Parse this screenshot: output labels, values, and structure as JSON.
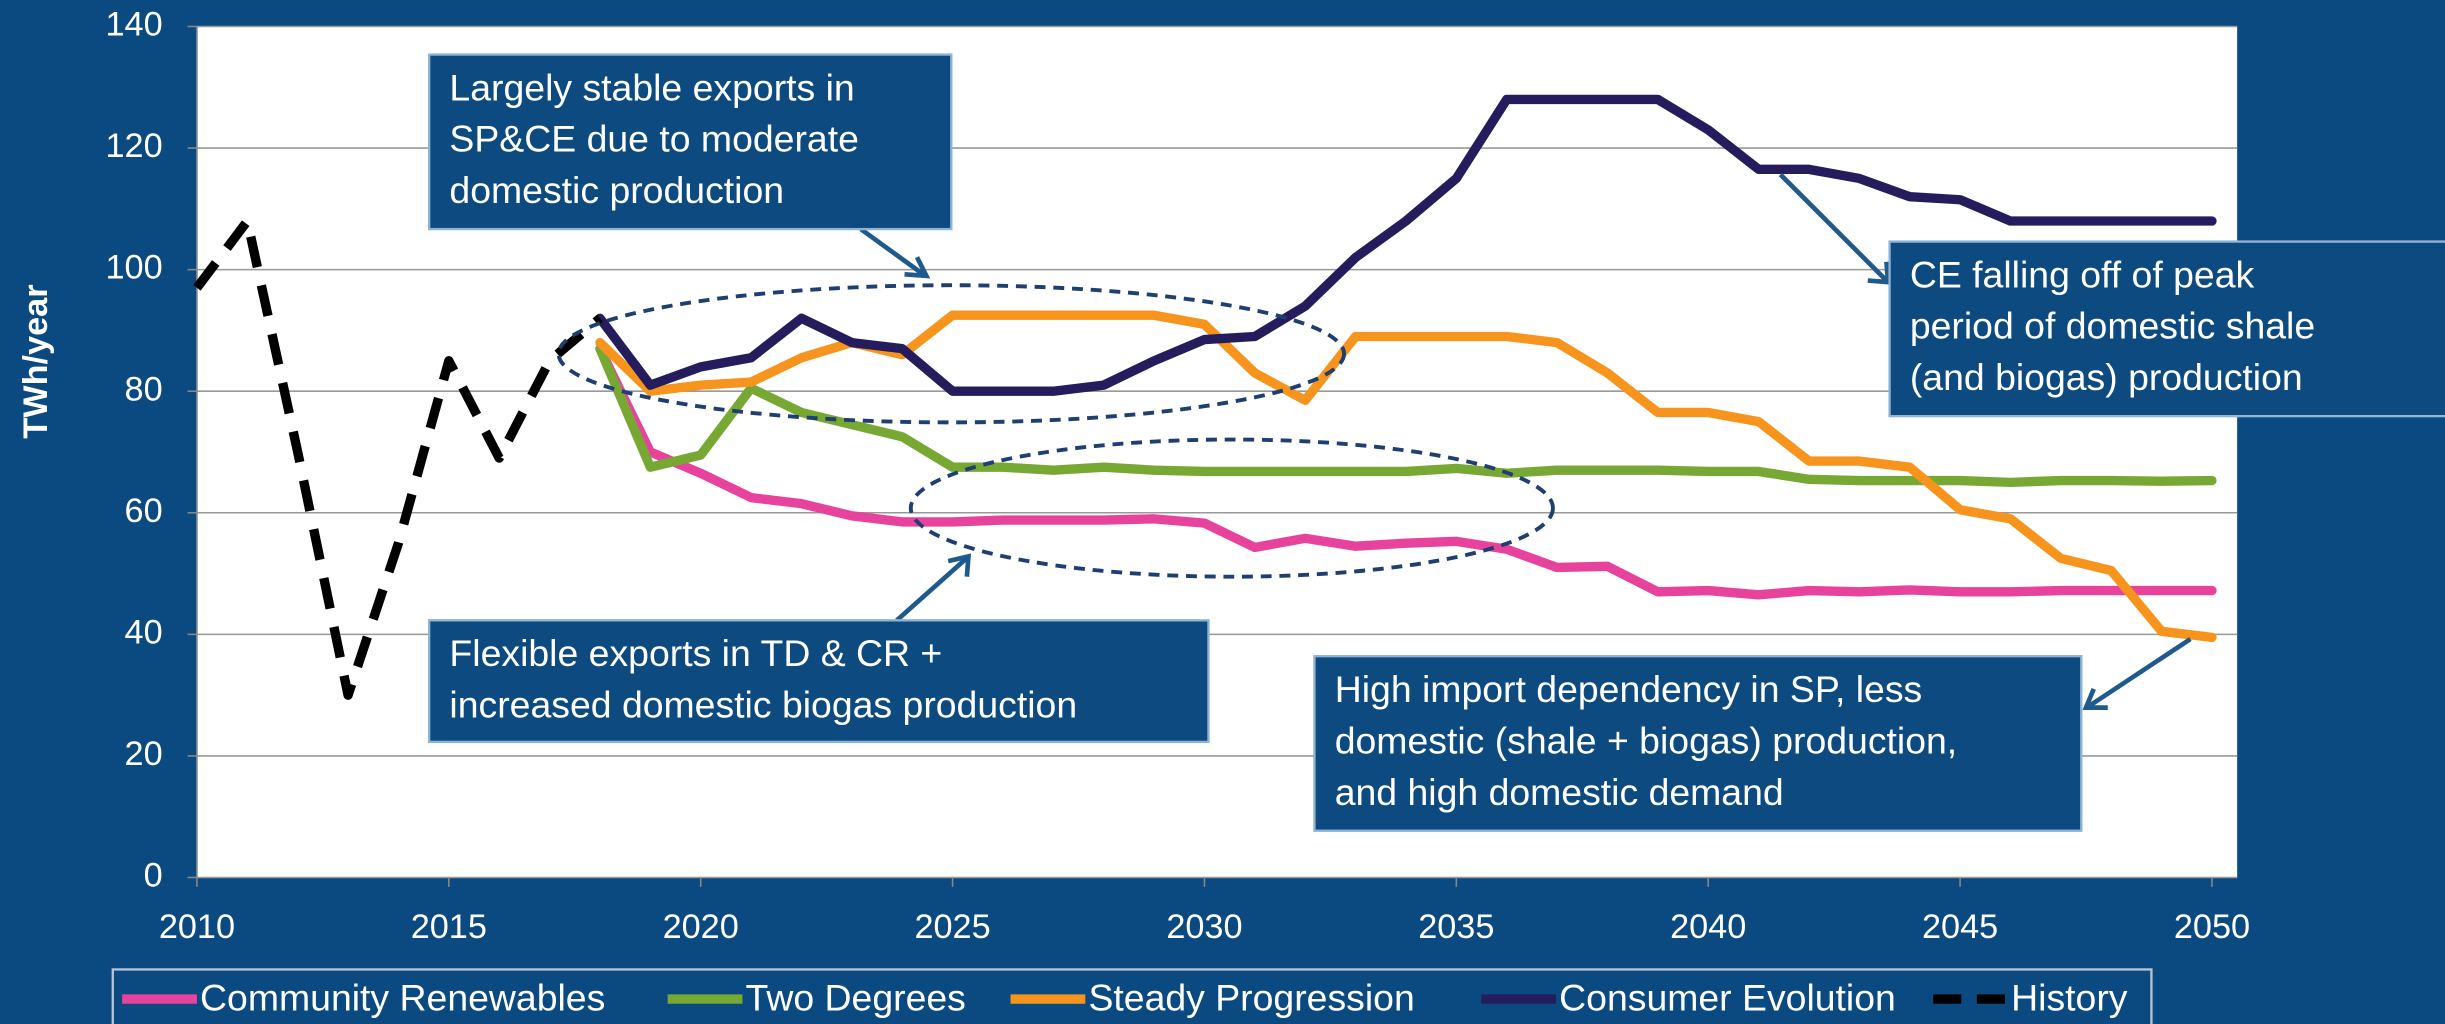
{
  "chart_data": {
    "type": "line",
    "ylabel": "TWh/year",
    "x": [
      2018,
      2019,
      2020,
      2021,
      2022,
      2023,
      2024,
      2025,
      2026,
      2027,
      2028,
      2029,
      2030,
      2031,
      2032,
      2033,
      2034,
      2035,
      2036,
      2037,
      2038,
      2039,
      2040,
      2041,
      2042,
      2043,
      2044,
      2045,
      2046,
      2047,
      2048,
      2049,
      2050
    ],
    "series": [
      {
        "name": "Community Renewables",
        "color": "#e8439c",
        "values": [
          87,
          70,
          66.5,
          62.5,
          61.5,
          59.5,
          58.5,
          58.5,
          58.8,
          58.8,
          58.8,
          59,
          58.3,
          54.3,
          55.8,
          54.5,
          55,
          55.3,
          54,
          51,
          51.2,
          47,
          47.2,
          46.5,
          47.2,
          47,
          47.3,
          47,
          47,
          47.2,
          47.2,
          47.2,
          47.2
        ]
      },
      {
        "name": "Two Degrees",
        "color": "#77a834",
        "values": [
          87,
          67.5,
          69.5,
          80.5,
          76.5,
          74.5,
          72.5,
          67.5,
          67.5,
          67,
          67.5,
          67,
          66.8,
          66.8,
          66.8,
          66.8,
          66.8,
          67.3,
          66.5,
          67,
          67,
          67,
          66.8,
          66.8,
          65.5,
          65.3,
          65.3,
          65.3,
          65,
          65.3,
          65.3,
          65.2,
          65.3
        ]
      },
      {
        "name": "Steady Progression",
        "color": "#f7941d",
        "values": [
          88,
          80,
          81,
          81.5,
          85.5,
          88,
          86,
          92.5,
          92.5,
          92.5,
          92.5,
          92.5,
          91,
          83,
          78.5,
          89,
          89,
          89,
          89,
          88,
          83,
          76.5,
          76.5,
          75,
          68.5,
          68.5,
          67.5,
          60.5,
          59,
          52.5,
          50.5,
          40.5,
          39.5
        ]
      },
      {
        "name": "Consumer Evolution",
        "color": "#241c5c",
        "values": [
          92,
          81,
          84,
          85.5,
          92,
          88,
          87,
          80,
          80,
          80,
          81,
          85,
          88.5,
          89,
          94,
          102,
          108,
          115,
          128,
          128,
          128,
          128,
          123,
          116.5,
          116.5,
          115,
          112,
          111.5,
          108,
          108,
          108,
          108,
          108
        ]
      },
      {
        "name": "History",
        "color": "#000000",
        "dashed": true,
        "x": [
          2010,
          2011,
          2012,
          2013,
          2014,
          2015,
          2016,
          2017,
          2018
        ],
        "values": [
          97,
          108,
          70,
          30,
          55,
          85,
          69,
          85,
          92
        ]
      }
    ],
    "xlim": [
      2010,
      2050.5
    ],
    "xticks": [
      2010,
      2015,
      2020,
      2025,
      2030,
      2035,
      2040,
      2045,
      2050
    ],
    "ylim": [
      0,
      140
    ],
    "yticks": [
      0,
      20,
      40,
      60,
      80,
      100,
      120,
      140
    ],
    "grid": true,
    "legend": "bottom",
    "annotations": [
      {
        "lines": [
          "Largely stable exports in",
          "SP&CE due to moderate",
          "domestic production"
        ]
      },
      {
        "lines": [
          "CE falling off of peak",
          "period of domestic shale",
          "(and biogas) production"
        ]
      },
      {
        "lines": [
          "Flexible exports in TD & CR +",
          "increased domestic biogas production"
        ]
      },
      {
        "lines": [
          "High import dependency in SP, less",
          "domestic (shale + biogas) production,",
          "and high domestic demand"
        ]
      }
    ]
  }
}
